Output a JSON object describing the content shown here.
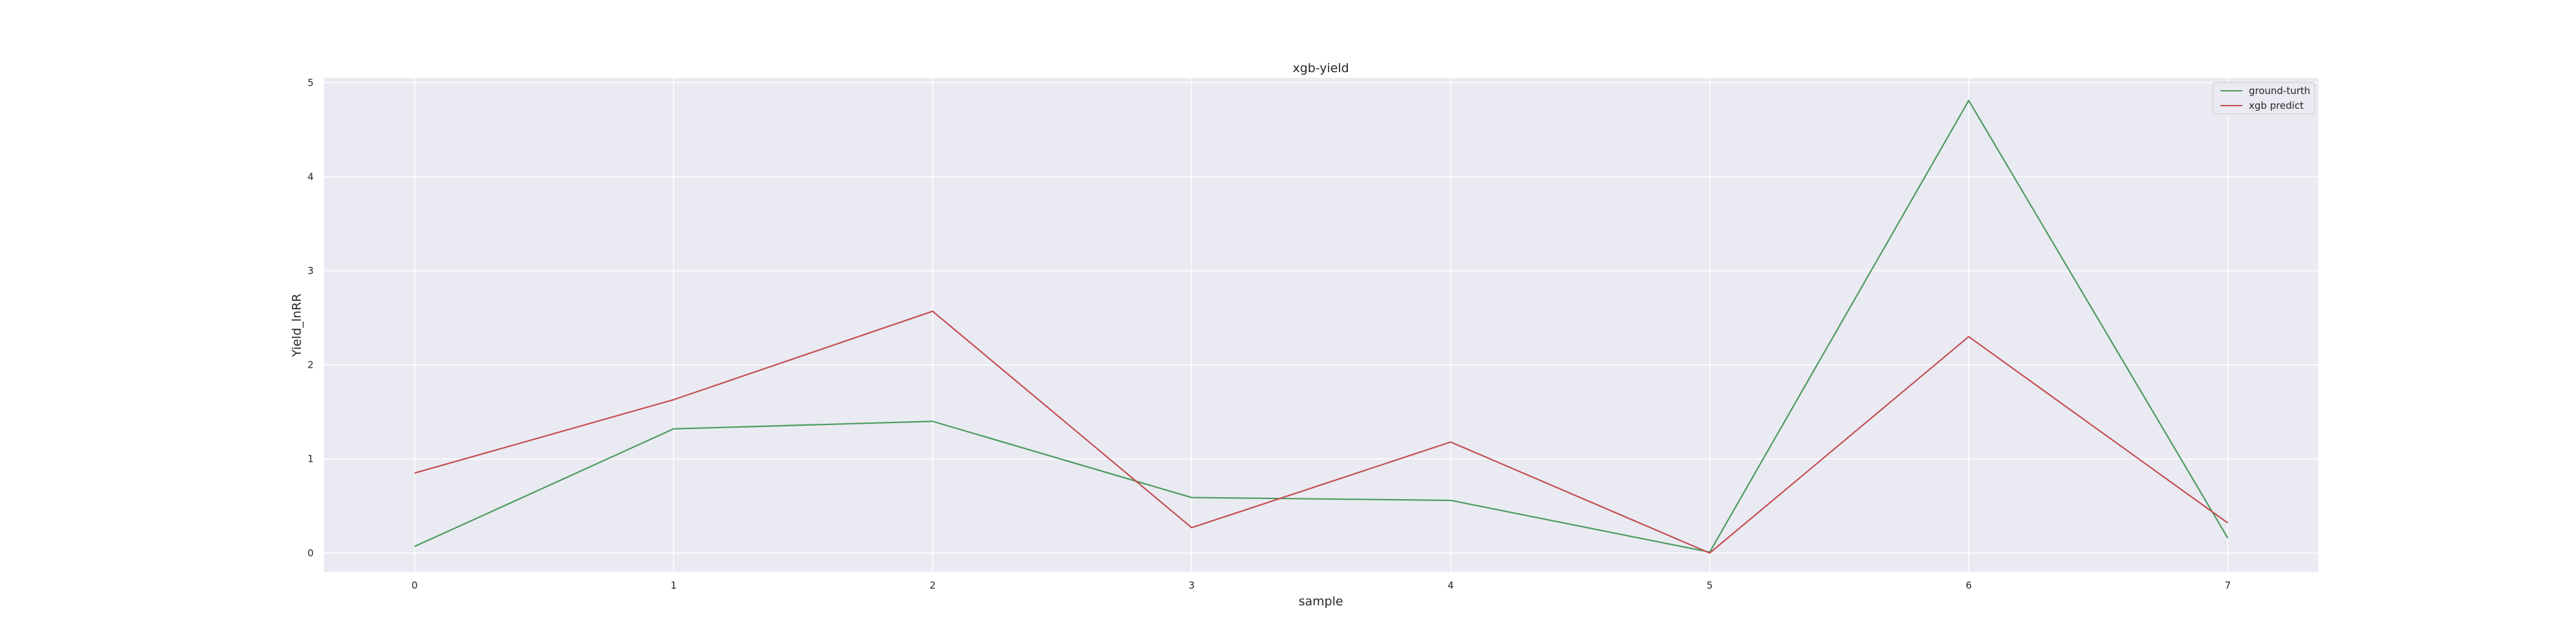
{
  "chart_data": {
    "type": "line",
    "title": "xgb-yield",
    "xlabel": "sample",
    "ylabel": "Yield_lnRR",
    "x": [
      0,
      1,
      2,
      3,
      4,
      5,
      6,
      7
    ],
    "xticks": [
      "0",
      "1",
      "2",
      "3",
      "4",
      "5",
      "6",
      "7"
    ],
    "yticks": [
      "0",
      "1",
      "2",
      "3",
      "4",
      "5"
    ],
    "xlim": [
      -0.35,
      7.35
    ],
    "ylim": [
      -0.2,
      5.05
    ],
    "grid": true,
    "legend_position": "top-right",
    "series": [
      {
        "name": "ground-turth",
        "color": "#4c9a5f",
        "values": [
          0.07,
          1.32,
          1.4,
          0.59,
          0.56,
          0.01,
          4.81,
          0.16
        ]
      },
      {
        "name": "xgb predict",
        "color": "#c44e52",
        "values": [
          0.85,
          1.63,
          2.57,
          0.27,
          1.18,
          0.0,
          2.3,
          0.32
        ]
      }
    ]
  },
  "colors": {
    "plot_background": "#eaeaf2",
    "grid": "#ffffff"
  }
}
